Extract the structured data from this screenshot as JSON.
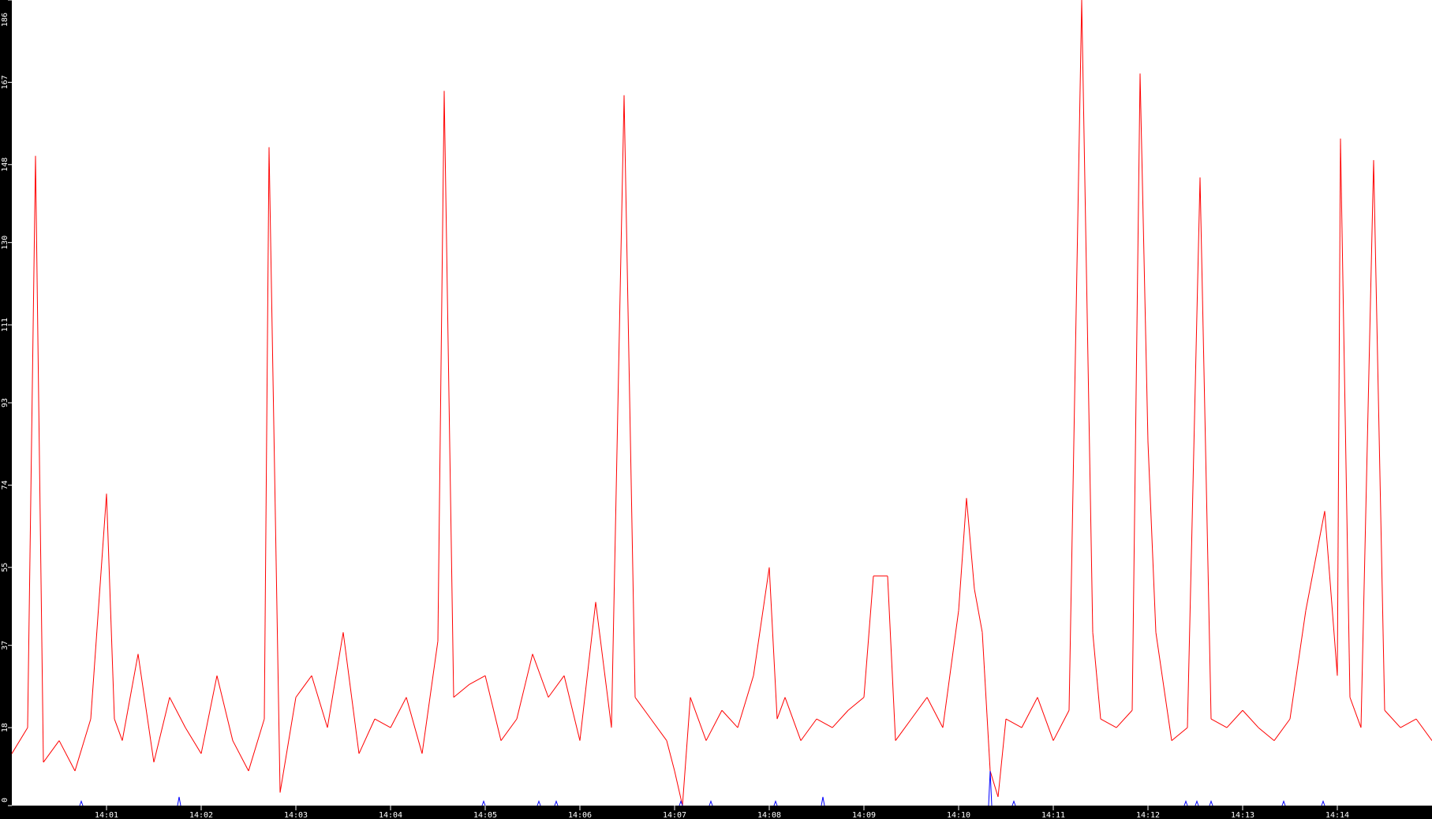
{
  "chart_data": {
    "type": "line",
    "title": "",
    "xlabel": "",
    "ylabel": "",
    "ylim": [
      0,
      186
    ],
    "xlim": [
      "14:00:00",
      "14:15:00"
    ],
    "grid": false,
    "background": "#ffffff",
    "axis_background": "#000000",
    "y_ticks": [
      "0",
      "18",
      "37",
      "55",
      "74",
      "93",
      "111",
      "130",
      "148",
      "167",
      "186"
    ],
    "x_ticks": [
      "14:01",
      "14:02",
      "14:03",
      "14:04",
      "14:05",
      "14:06",
      "14:07",
      "14:08",
      "14:09",
      "14:10",
      "14:11",
      "14:12",
      "14:13",
      "14:14"
    ],
    "series": [
      {
        "color": "#ff0000",
        "points": [
          [
            "14:00:00",
            12
          ],
          [
            "14:00:10",
            18
          ],
          [
            "14:00:15",
            150
          ],
          [
            "14:00:20",
            10
          ],
          [
            "14:00:30",
            15
          ],
          [
            "14:00:40",
            8
          ],
          [
            "14:00:50",
            20
          ],
          [
            "14:01:00",
            72
          ],
          [
            "14:01:05",
            20
          ],
          [
            "14:01:10",
            15
          ],
          [
            "14:01:20",
            35
          ],
          [
            "14:01:30",
            10
          ],
          [
            "14:01:40",
            25
          ],
          [
            "14:01:50",
            18
          ],
          [
            "14:02:00",
            12
          ],
          [
            "14:02:10",
            30
          ],
          [
            "14:02:20",
            15
          ],
          [
            "14:02:30",
            8
          ],
          [
            "14:02:40",
            20
          ],
          [
            "14:02:43",
            152
          ],
          [
            "14:02:50",
            3
          ],
          [
            "14:03:00",
            25
          ],
          [
            "14:03:10",
            30
          ],
          [
            "14:03:20",
            18
          ],
          [
            "14:03:30",
            40
          ],
          [
            "14:03:40",
            12
          ],
          [
            "14:03:50",
            20
          ],
          [
            "14:04:00",
            18
          ],
          [
            "14:04:10",
            25
          ],
          [
            "14:04:20",
            12
          ],
          [
            "14:04:30",
            38
          ],
          [
            "14:04:34",
            165
          ],
          [
            "14:04:40",
            25
          ],
          [
            "14:04:50",
            28
          ],
          [
            "14:05:00",
            30
          ],
          [
            "14:05:10",
            15
          ],
          [
            "14:05:20",
            20
          ],
          [
            "14:05:30",
            35
          ],
          [
            "14:05:40",
            25
          ],
          [
            "14:05:50",
            30
          ],
          [
            "14:06:00",
            15
          ],
          [
            "14:06:10",
            47
          ],
          [
            "14:06:20",
            18
          ],
          [
            "14:06:28",
            164
          ],
          [
            "14:06:35",
            25
          ],
          [
            "14:06:45",
            20
          ],
          [
            "14:06:55",
            15
          ],
          [
            "14:07:00",
            8
          ],
          [
            "14:07:05",
            0
          ],
          [
            "14:07:10",
            25
          ],
          [
            "14:07:20",
            15
          ],
          [
            "14:07:30",
            22
          ],
          [
            "14:07:40",
            18
          ],
          [
            "14:07:50",
            30
          ],
          [
            "14:08:00",
            55
          ],
          [
            "14:08:05",
            20
          ],
          [
            "14:08:10",
            25
          ],
          [
            "14:08:20",
            15
          ],
          [
            "14:08:30",
            20
          ],
          [
            "14:08:40",
            18
          ],
          [
            "14:08:50",
            22
          ],
          [
            "14:09:00",
            25
          ],
          [
            "14:09:06",
            53
          ],
          [
            "14:09:15",
            53
          ],
          [
            "14:09:20",
            15
          ],
          [
            "14:09:30",
            20
          ],
          [
            "14:09:40",
            25
          ],
          [
            "14:09:50",
            18
          ],
          [
            "14:10:00",
            45
          ],
          [
            "14:10:05",
            71
          ],
          [
            "14:10:10",
            50
          ],
          [
            "14:10:15",
            40
          ],
          [
            "14:10:20",
            8
          ],
          [
            "14:10:25",
            2
          ],
          [
            "14:10:30",
            20
          ],
          [
            "14:10:40",
            18
          ],
          [
            "14:10:50",
            25
          ],
          [
            "14:11:00",
            15
          ],
          [
            "14:11:10",
            22
          ],
          [
            "14:11:18",
            186
          ],
          [
            "14:11:25",
            40
          ],
          [
            "14:11:30",
            20
          ],
          [
            "14:11:40",
            18
          ],
          [
            "14:11:50",
            22
          ],
          [
            "14:11:55",
            169
          ],
          [
            "14:12:00",
            84
          ],
          [
            "14:12:05",
            40
          ],
          [
            "14:12:15",
            15
          ],
          [
            "14:12:25",
            18
          ],
          [
            "14:12:33",
            145
          ],
          [
            "14:12:40",
            20
          ],
          [
            "14:12:50",
            18
          ],
          [
            "14:13:00",
            22
          ],
          [
            "14:13:10",
            18
          ],
          [
            "14:13:20",
            15
          ],
          [
            "14:13:30",
            20
          ],
          [
            "14:13:40",
            45
          ],
          [
            "14:13:52",
            68
          ],
          [
            "14:14:00",
            30
          ],
          [
            "14:14:02",
            154
          ],
          [
            "14:14:08",
            25
          ],
          [
            "14:14:15",
            18
          ],
          [
            "14:14:23",
            149
          ],
          [
            "14:14:30",
            22
          ],
          [
            "14:14:40",
            18
          ],
          [
            "14:14:50",
            20
          ],
          [
            "14:15:00",
            15
          ]
        ]
      },
      {
        "color": "#0000ff",
        "points": [
          [
            "14:00:44",
            1
          ],
          [
            "14:01:46",
            2
          ],
          [
            "14:04:59",
            1
          ],
          [
            "14:05:34",
            1
          ],
          [
            "14:05:45",
            1
          ],
          [
            "14:07:04",
            1
          ],
          [
            "14:07:23",
            1
          ],
          [
            "14:08:04",
            1
          ],
          [
            "14:08:34",
            2
          ],
          [
            "14:10:20",
            8
          ],
          [
            "14:10:35",
            1
          ],
          [
            "14:12:24",
            1
          ],
          [
            "14:12:31",
            1
          ],
          [
            "14:12:40",
            1
          ],
          [
            "14:13:26",
            1
          ],
          [
            "14:13:51",
            1
          ]
        ]
      }
    ]
  }
}
